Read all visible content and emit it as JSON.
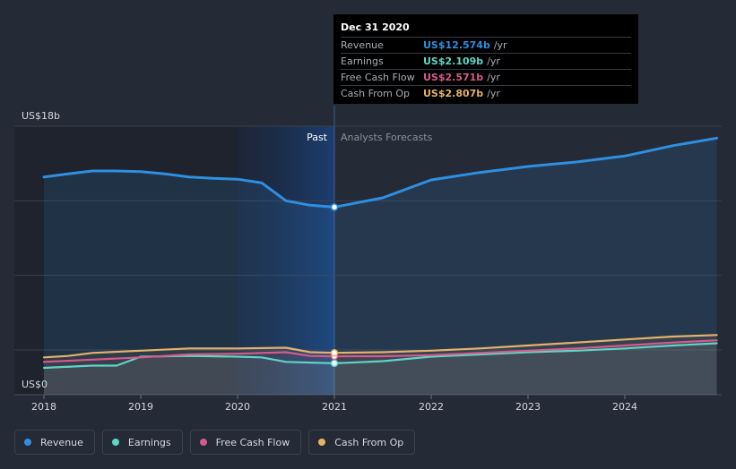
{
  "chart_data": {
    "type": "area",
    "ylabel_top": "US$18b",
    "ylabel_bottom": "US$0",
    "ylim": [
      0,
      18
    ],
    "xlim": [
      2017.75,
      2024.95
    ],
    "x_ticks": [
      "2018",
      "2019",
      "2020",
      "2021",
      "2022",
      "2023",
      "2024"
    ],
    "past_label": "Past",
    "forecast_label": "Analysts Forecasts",
    "past_boundary": 2021.0,
    "series": [
      {
        "name": "Revenue",
        "color": "#2f8fe0",
        "points": [
          [
            2018.0,
            14.6
          ],
          [
            2018.25,
            14.8
          ],
          [
            2018.5,
            15.0
          ],
          [
            2018.75,
            15.0
          ],
          [
            2019.0,
            14.95
          ],
          [
            2019.25,
            14.8
          ],
          [
            2019.5,
            14.6
          ],
          [
            2019.75,
            14.5
          ],
          [
            2020.0,
            14.45
          ],
          [
            2020.25,
            14.2
          ],
          [
            2020.5,
            13.0
          ],
          [
            2020.75,
            12.7
          ],
          [
            2021.0,
            12.574
          ],
          [
            2021.5,
            13.2
          ],
          [
            2022.0,
            14.4
          ],
          [
            2022.5,
            14.9
          ],
          [
            2023.0,
            15.3
          ],
          [
            2023.5,
            15.6
          ],
          [
            2024.0,
            16.0
          ],
          [
            2024.5,
            16.7
          ],
          [
            2024.95,
            17.2
          ]
        ]
      },
      {
        "name": "Earnings",
        "color": "#5ed6c4",
        "points": [
          [
            2018.0,
            1.8
          ],
          [
            2018.5,
            1.95
          ],
          [
            2018.75,
            1.95
          ],
          [
            2019.0,
            2.55
          ],
          [
            2019.5,
            2.6
          ],
          [
            2020.0,
            2.55
          ],
          [
            2020.25,
            2.5
          ],
          [
            2020.5,
            2.2
          ],
          [
            2021.0,
            2.109
          ],
          [
            2021.5,
            2.25
          ],
          [
            2022.0,
            2.55
          ],
          [
            2022.5,
            2.7
          ],
          [
            2023.0,
            2.85
          ],
          [
            2023.5,
            2.95
          ],
          [
            2024.0,
            3.1
          ],
          [
            2024.5,
            3.3
          ],
          [
            2024.95,
            3.45
          ]
        ]
      },
      {
        "name": "Free Cash Flow",
        "color": "#d65a8e",
        "points": [
          [
            2018.0,
            2.2
          ],
          [
            2018.5,
            2.35
          ],
          [
            2019.0,
            2.5
          ],
          [
            2019.5,
            2.7
          ],
          [
            2020.0,
            2.75
          ],
          [
            2020.5,
            2.85
          ],
          [
            2020.75,
            2.6
          ],
          [
            2021.0,
            2.571
          ],
          [
            2021.5,
            2.58
          ],
          [
            2022.0,
            2.65
          ],
          [
            2022.5,
            2.8
          ],
          [
            2023.0,
            2.95
          ],
          [
            2023.5,
            3.1
          ],
          [
            2024.0,
            3.3
          ],
          [
            2024.5,
            3.5
          ],
          [
            2024.95,
            3.65
          ]
        ]
      },
      {
        "name": "Cash From Op",
        "color": "#e6b26a",
        "points": [
          [
            2018.0,
            2.5
          ],
          [
            2018.25,
            2.6
          ],
          [
            2018.5,
            2.8
          ],
          [
            2019.0,
            2.95
          ],
          [
            2019.5,
            3.1
          ],
          [
            2020.0,
            3.1
          ],
          [
            2020.5,
            3.15
          ],
          [
            2020.75,
            2.85
          ],
          [
            2021.0,
            2.807
          ],
          [
            2021.5,
            2.85
          ],
          [
            2022.0,
            2.95
          ],
          [
            2022.5,
            3.1
          ],
          [
            2023.0,
            3.3
          ],
          [
            2023.5,
            3.5
          ],
          [
            2024.0,
            3.7
          ],
          [
            2024.5,
            3.9
          ],
          [
            2024.95,
            4.0
          ]
        ]
      }
    ],
    "grid": true,
    "legend_position": "bottom-left"
  },
  "tooltip": {
    "date": "Dec 31 2020",
    "rows": [
      {
        "label": "Revenue",
        "value": "US$12.574b",
        "unit": "/yr",
        "color": "#2f8fe0"
      },
      {
        "label": "Earnings",
        "value": "US$2.109b",
        "unit": "/yr",
        "color": "#5ed6c4"
      },
      {
        "label": "Free Cash Flow",
        "value": "US$2.571b",
        "unit": "/yr",
        "color": "#d65a8e"
      },
      {
        "label": "Cash From Op",
        "value": "US$2.807b",
        "unit": "/yr",
        "color": "#e6b26a"
      }
    ]
  },
  "legend": [
    {
      "label": "Revenue",
      "color": "#2f8fe0"
    },
    {
      "label": "Earnings",
      "color": "#5ed6c4"
    },
    {
      "label": "Free Cash Flow",
      "color": "#d65a8e"
    },
    {
      "label": "Cash From Op",
      "color": "#e6b26a"
    }
  ]
}
